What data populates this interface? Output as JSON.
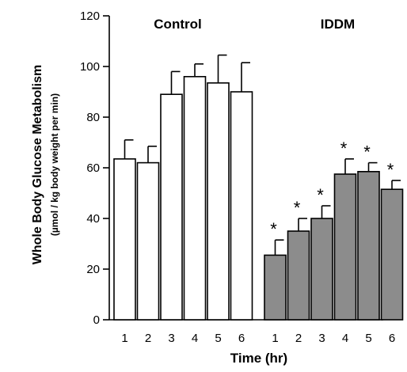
{
  "chart_data": {
    "type": "bar",
    "ylabel": "Whole Body Glucose Metabolism",
    "ylabel_units": "(µmol / kg body weight per min)",
    "xlabel": "Time (hr)",
    "ylim": [
      0,
      120
    ],
    "yticks": [
      "0",
      "20",
      "40",
      "60",
      "80",
      "100",
      "120"
    ],
    "groups": [
      {
        "name": "Control",
        "color": "#ffffff",
        "categories": [
          "1",
          "2",
          "3",
          "4",
          "5",
          "6"
        ],
        "values": [
          63.5,
          62,
          89,
          96,
          93.5,
          90
        ],
        "errors": [
          7.5,
          6.5,
          9,
          5,
          11,
          11.5
        ],
        "significance": [
          "",
          "",
          "",
          "",
          "",
          ""
        ]
      },
      {
        "name": "IDDM",
        "color": "#8c8c8c",
        "categories": [
          "1",
          "2",
          "3",
          "4",
          "5",
          "6"
        ],
        "values": [
          25.5,
          35,
          40,
          57.5,
          58.5,
          51.5
        ],
        "errors": [
          6,
          5,
          5,
          6,
          3.5,
          3.5
        ],
        "significance": [
          "*",
          "*",
          "*",
          "*",
          "*",
          "*"
        ]
      }
    ],
    "grid": false,
    "legend": "none"
  }
}
